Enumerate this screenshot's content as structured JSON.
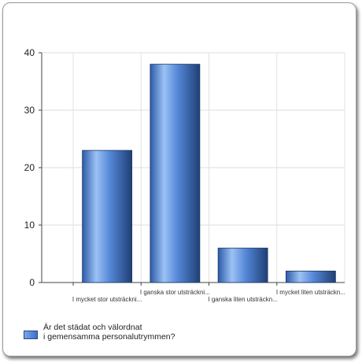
{
  "chart_data": {
    "type": "bar",
    "categories": [
      "I mycket stor utsträckni...",
      "I ganska stor utsträckni...",
      "I ganska liten utsträckn...",
      "I mycket liten utsträckn..."
    ],
    "series": [
      {
        "name": "Är det städat och välordnat i gemensamma personalutrymmen?",
        "values": [
          23,
          38,
          6,
          2
        ]
      }
    ],
    "yticks": [
      0,
      10,
      20,
      30,
      40
    ],
    "ylim": [
      0,
      40
    ],
    "grid": true,
    "legend_position": "bottom-left",
    "bar_color": "#4a7fd6",
    "bar_dark": "#1f3f74",
    "bar_light": "#9cc2f5"
  },
  "legend": {
    "line1": "Är det städat och välordnat",
    "line2": "i gemensamma personalutrymmen?"
  }
}
